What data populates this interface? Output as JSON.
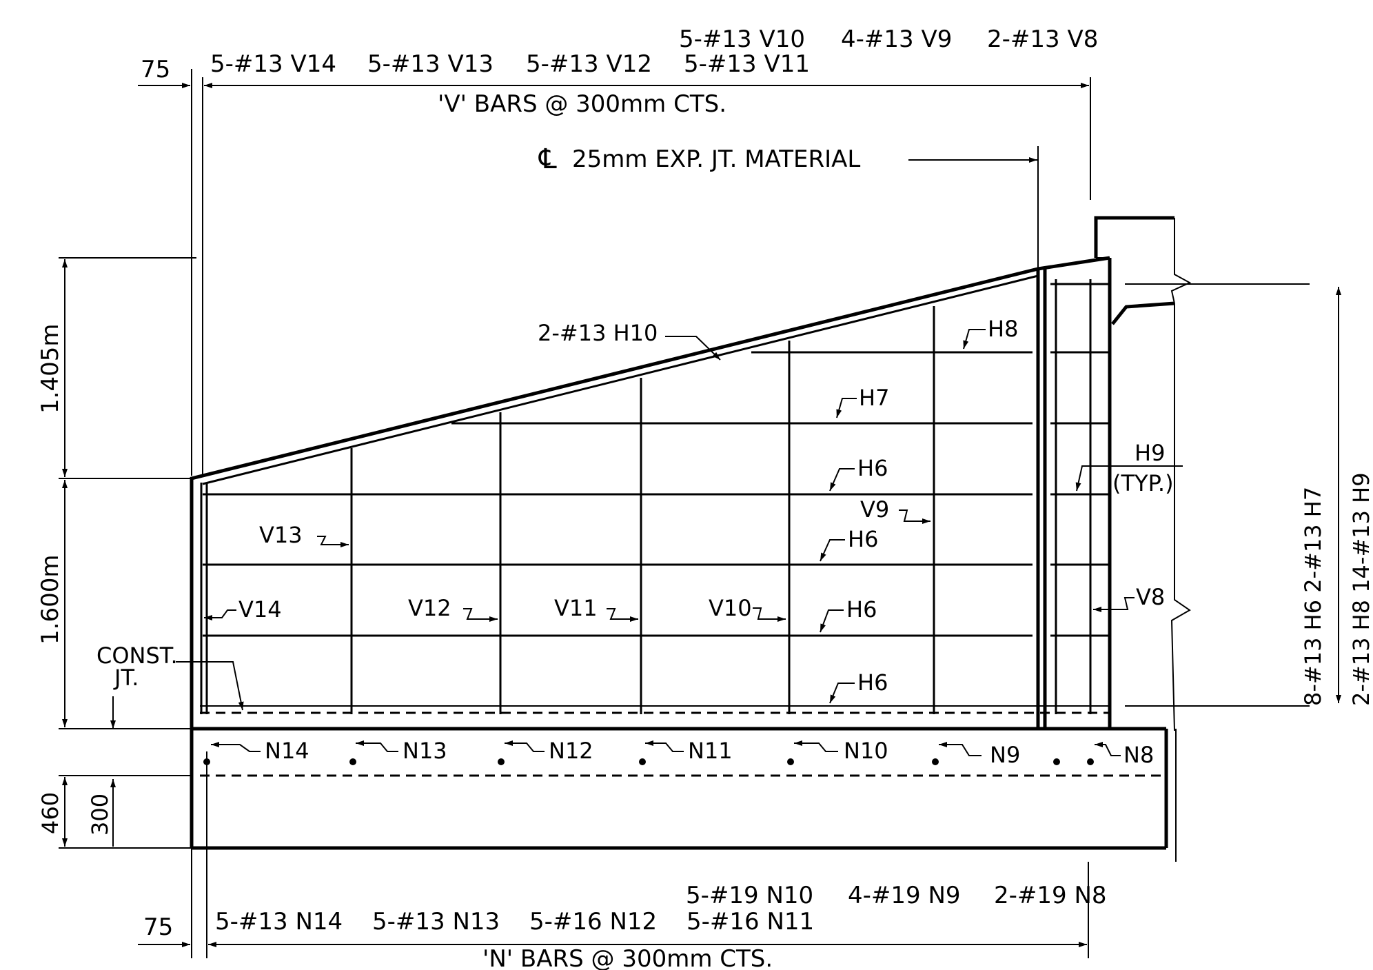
{
  "top_schedule": {
    "row1": [
      "5-#13  V10",
      "4-#13  V9",
      "2-#13  V8"
    ],
    "row2": [
      "5-#13  V14",
      "5-#13  V13",
      "5-#13  V12",
      "5-#13  V11"
    ],
    "left_dim": "75",
    "spacing_note": "'V' BARS @ 300mm  CTS."
  },
  "joint_note": "25mm  EXP. JT. MATERIAL",
  "centerline_symbol": "℄",
  "left_dims": {
    "upper": "1.405m",
    "lower": "1.600m",
    "footing": "460",
    "footing_inner": "300"
  },
  "const_joint": {
    "line1": "CONST.",
    "line2": "JT."
  },
  "h_labels": {
    "h10": "2-#13  H10",
    "h8": "H8",
    "h7": "H7",
    "h6": "H6",
    "h9": "H9",
    "typ": "(TYP.)"
  },
  "v_labels": [
    "V14",
    "V13",
    "V12",
    "V11",
    "V10",
    "V9",
    "V8"
  ],
  "n_labels": [
    "N14",
    "N13",
    "N12",
    "N11",
    "N10",
    "N9",
    "N8"
  ],
  "right_notes": [
    "8-#13  H6    2-#13  H7",
    "2-#13  H8    14-#13  H9"
  ],
  "bottom_schedule": {
    "row1": [
      "5-#19  N10",
      "4-#19  N9",
      "2-#19  N8"
    ],
    "row2": [
      "5-#13  N14",
      "5-#13  N13",
      "5-#16  N12",
      "5-#16  N11"
    ],
    "left_dim": "75",
    "spacing_note": "'N' BARS  @ 300mm  CTS."
  }
}
